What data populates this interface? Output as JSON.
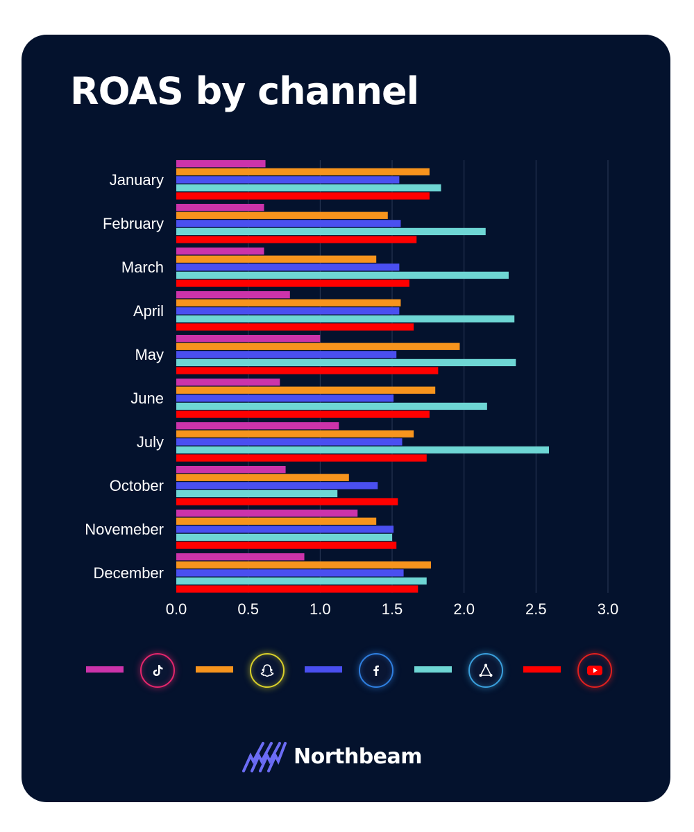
{
  "title": "ROAS by channel",
  "brand": {
    "name": "Northbeam",
    "logo_icon": "northbeam-logo-icon"
  },
  "colors": {
    "background": "#04122d",
    "gridline": "#2c3a57",
    "text": "#ffffff"
  },
  "legend": [
    {
      "icon": "tiktok-icon",
      "color": "#cc33aa",
      "ring": "#e4266c"
    },
    {
      "icon": "snapchat-icon",
      "color": "#f7941d",
      "ring": "#d8cf2a"
    },
    {
      "icon": "facebook-icon",
      "color": "#4a4ff0",
      "ring": "#2f7fe0"
    },
    {
      "icon": "applovin-icon",
      "color": "#6ed6d4",
      "ring": "#3a9fdc"
    },
    {
      "icon": "youtube-icon",
      "color": "#ff0000",
      "ring": "#e0201f"
    }
  ],
  "chart_data": {
    "type": "bar",
    "orientation": "horizontal",
    "categories": [
      "January",
      "February",
      "March",
      "April",
      "May",
      "June",
      "July",
      "October",
      "Novemeber",
      "December"
    ],
    "series": [
      {
        "color": "#cc33aa",
        "values": [
          0.62,
          0.61,
          0.61,
          0.79,
          1.0,
          0.72,
          1.13,
          0.76,
          1.26,
          0.89
        ]
      },
      {
        "color": "#f7941d",
        "values": [
          1.76,
          1.47,
          1.39,
          1.56,
          1.97,
          1.8,
          1.65,
          1.2,
          1.39,
          1.77
        ]
      },
      {
        "color": "#4a4ff0",
        "values": [
          1.55,
          1.56,
          1.55,
          1.55,
          1.53,
          1.51,
          1.57,
          1.4,
          1.51,
          1.58
        ]
      },
      {
        "color": "#6ed6d4",
        "values": [
          1.84,
          2.15,
          2.31,
          2.35,
          2.36,
          2.16,
          2.59,
          1.12,
          1.5,
          1.74
        ]
      },
      {
        "color": "#ff0000",
        "values": [
          1.76,
          1.67,
          1.62,
          1.65,
          1.82,
          1.76,
          1.74,
          1.54,
          1.53,
          1.68
        ]
      }
    ],
    "xlim": [
      0,
      3.0
    ],
    "xticks": [
      "0.0",
      "0.5",
      "1.0",
      "1.5",
      "2.0",
      "2.5",
      "3.0"
    ],
    "grid": true,
    "legend_position": "bottom"
  }
}
